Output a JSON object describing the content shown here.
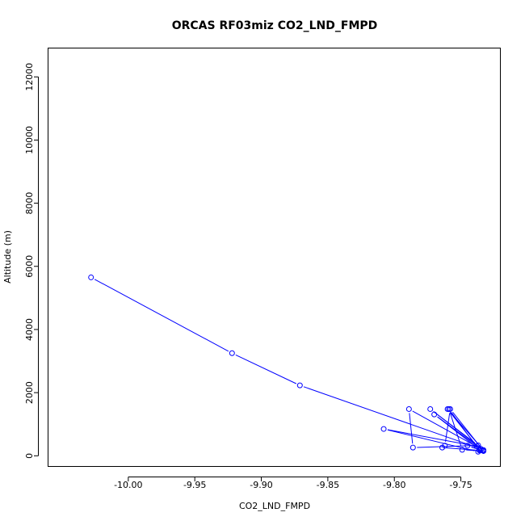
{
  "chart_data": {
    "type": "line",
    "title": "ORCAS RF03miz CO2_LND_FMPD",
    "xlabel": "CO2_LND_FMPD",
    "ylabel": "Altitude (m)",
    "xlim": [
      -10.06,
      -9.72
    ],
    "ylim": [
      -350,
      12900
    ],
    "xticks": [
      -10.0,
      -9.95,
      -9.9,
      -9.85,
      -9.8,
      -9.75
    ],
    "xtick_labels": [
      "-10.00",
      "-9.95",
      "-9.90",
      "-9.85",
      "-9.80",
      "-9.75"
    ],
    "yticks": [
      0,
      2000,
      4000,
      6000,
      8000,
      10000,
      12000
    ],
    "ytick_labels": [
      "0",
      "2000",
      "4000",
      "6000",
      "8000",
      "10000",
      "12000"
    ],
    "grid": false,
    "series": [
      {
        "color": "#0000ff",
        "marker": "open-circle",
        "x": [
          -10.028,
          -9.922,
          -9.871,
          -9.735,
          -9.789,
          -9.786,
          -9.737,
          -9.773,
          -9.733,
          -9.76,
          -9.736,
          -9.77,
          -9.733,
          -9.758,
          -9.762,
          -9.764,
          -9.736,
          -9.759,
          -9.749,
          -9.733,
          -9.745,
          -9.734,
          -9.735,
          -9.738,
          -9.808,
          -9.737
        ],
        "y": [
          5650,
          3250,
          2230,
          220,
          1480,
          260,
          330,
          1480,
          180,
          1480,
          200,
          1310,
          160,
          1480,
          320,
          260,
          170,
          1480,
          190,
          150,
          320,
          170,
          180,
          300,
          850,
          130
        ]
      }
    ]
  }
}
